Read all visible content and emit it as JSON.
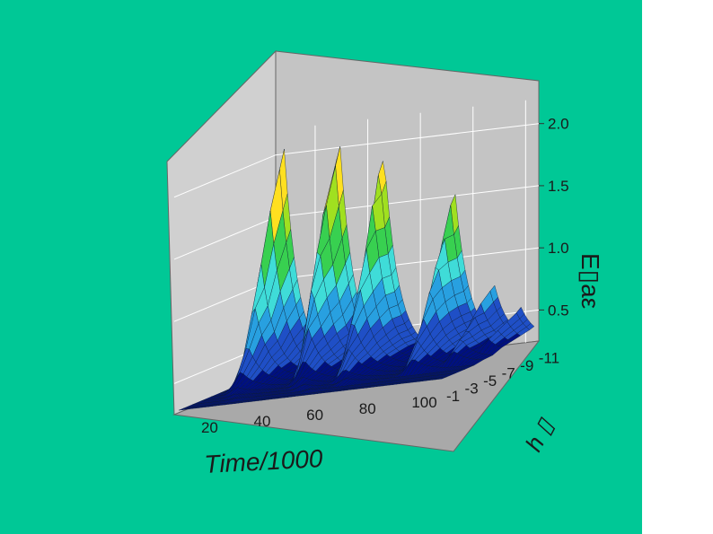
{
  "colors": {
    "background": "#00c896",
    "wall": "#c4c4c4",
    "floor": "#a9a9a9",
    "colormap": [
      "#001080",
      "#1f4fc6",
      "#28a0e0",
      "#3fdcd8",
      "#38d050",
      "#a0e020",
      "#ffe020",
      "#ff9010",
      "#e02010"
    ]
  },
  "chart_data": {
    "type": "surface",
    "title": "",
    "xlabel": "Time/1000",
    "ylabel": "h ▯",
    "zlabel": "E▯aε",
    "xticks": [
      20,
      40,
      60,
      80,
      100
    ],
    "yticks": [
      -11,
      -9,
      -7,
      -5,
      -3,
      -1
    ],
    "zticks": [
      "0.5",
      "1.0",
      "1.5",
      "2.0"
    ],
    "xlim": [
      5,
      105
    ],
    "ylim": [
      -12,
      -1
    ],
    "zlim": [
      0.25,
      2.2
    ],
    "surface_rows": [
      {
        "y": -11.5,
        "peaks": [
          [
            10,
            2.05
          ],
          [
            31,
            2.1
          ],
          [
            48,
            1.9
          ],
          [
            75,
            1.52
          ],
          [
            90,
            0.75
          ],
          [
            100,
            0.55
          ]
        ]
      },
      {
        "y": -11.0,
        "peaks": [
          [
            10,
            1.9
          ],
          [
            31,
            1.95
          ],
          [
            48,
            1.8
          ],
          [
            75,
            1.45
          ],
          [
            90,
            0.72
          ],
          [
            100,
            0.52
          ]
        ]
      },
      {
        "y": -10.0,
        "peaks": [
          [
            10,
            1.6
          ],
          [
            31,
            1.65
          ],
          [
            49,
            1.55
          ],
          [
            76,
            1.25
          ],
          [
            90,
            0.65
          ],
          [
            100,
            0.48
          ]
        ]
      },
      {
        "y": -9.0,
        "peaks": [
          [
            10,
            1.2
          ],
          [
            32,
            1.3
          ],
          [
            50,
            1.22
          ],
          [
            77,
            1.05
          ],
          [
            91,
            0.58
          ],
          [
            100,
            0.44
          ]
        ]
      },
      {
        "y": -8.0,
        "peaks": [
          [
            11,
            0.9
          ],
          [
            33,
            0.98
          ],
          [
            51,
            0.95
          ],
          [
            78,
            0.85
          ],
          [
            92,
            0.5
          ],
          [
            100,
            0.4
          ]
        ]
      },
      {
        "y": -7.0,
        "peaks": [
          [
            12,
            0.6
          ],
          [
            35,
            0.68
          ],
          [
            52,
            0.7
          ],
          [
            79,
            0.65
          ],
          [
            93,
            0.45
          ]
        ]
      },
      {
        "y": -6.0,
        "peaks": [
          [
            13,
            0.42
          ],
          [
            37,
            0.45
          ],
          [
            54,
            0.5
          ],
          [
            80,
            0.5
          ],
          [
            94,
            0.38
          ]
        ]
      },
      {
        "y": -5.0,
        "peaks": [
          [
            15,
            0.32
          ],
          [
            40,
            0.34
          ],
          [
            56,
            0.36
          ],
          [
            82,
            0.38
          ]
        ]
      },
      {
        "y": -4.0,
        "peaks": [
          [
            18,
            0.29
          ],
          [
            44,
            0.3
          ],
          [
            60,
            0.31
          ]
        ]
      },
      {
        "y": -3.0,
        "peaks": [
          [
            22,
            0.28
          ],
          [
            50,
            0.28
          ]
        ]
      },
      {
        "y": -2.0,
        "peaks": [
          [
            28,
            0.27
          ]
        ]
      },
      {
        "y": -1.5,
        "peaks": []
      }
    ]
  }
}
